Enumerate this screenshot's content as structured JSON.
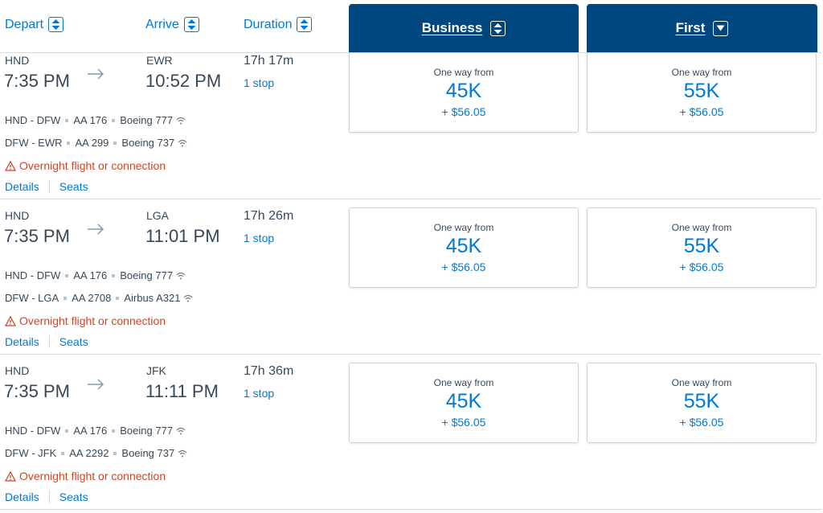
{
  "header": {
    "depart_label": "Depart",
    "arrive_label": "Arrive",
    "duration_label": "Duration",
    "cabins": [
      {
        "label": "Business",
        "icon": "sort-icon"
      },
      {
        "label": "First",
        "icon": "chevron-down-icon"
      }
    ]
  },
  "flights": [
    {
      "origin": "HND",
      "depart_time": "7:35 PM",
      "destination": "EWR",
      "arrive_time": "10:52 PM",
      "duration": "17h 17m",
      "stops": "1 stop",
      "segments": [
        {
          "route": "HND - DFW",
          "flight": "AA 176",
          "aircraft": "Boeing 777"
        },
        {
          "route": "DFW - EWR",
          "flight": "AA 299",
          "aircraft": "Boeing 737"
        }
      ],
      "warning": "Overnight flight or connection",
      "details_label": "Details",
      "seats_label": "Seats",
      "fares": [
        {
          "label": "One way from",
          "points": "45K",
          "taxes": "+ $56.05"
        },
        {
          "label": "One way from",
          "points": "55K",
          "taxes": "+ $56.05"
        }
      ]
    },
    {
      "origin": "HND",
      "depart_time": "7:35 PM",
      "destination": "LGA",
      "arrive_time": "11:01 PM",
      "duration": "17h 26m",
      "stops": "1 stop",
      "segments": [
        {
          "route": "HND - DFW",
          "flight": "AA 176",
          "aircraft": "Boeing 777"
        },
        {
          "route": "DFW - LGA",
          "flight": "AA 2708",
          "aircraft": "Airbus A321"
        }
      ],
      "warning": "Overnight flight or connection",
      "details_label": "Details",
      "seats_label": "Seats",
      "fares": [
        {
          "label": "One way from",
          "points": "45K",
          "taxes": "+ $56.05"
        },
        {
          "label": "One way from",
          "points": "55K",
          "taxes": "+ $56.05"
        }
      ]
    },
    {
      "origin": "HND",
      "depart_time": "7:35 PM",
      "destination": "JFK",
      "arrive_time": "11:11 PM",
      "duration": "17h 36m",
      "stops": "1 stop",
      "segments": [
        {
          "route": "HND - DFW",
          "flight": "AA 176",
          "aircraft": "Boeing 777"
        },
        {
          "route": "DFW - JFK",
          "flight": "AA 2292",
          "aircraft": "Boeing 737"
        }
      ],
      "warning": "Overnight flight or connection",
      "details_label": "Details",
      "seats_label": "Seats",
      "fares": [
        {
          "label": "One way from",
          "points": "45K",
          "taxes": "+ $56.05"
        },
        {
          "label": "One way from",
          "points": "55K",
          "taxes": "+ $56.05"
        }
      ]
    }
  ],
  "colors": {
    "accent": "#0078d2",
    "cabin_header": "#00467f",
    "warning": "#d14424",
    "text": "#36495a"
  }
}
